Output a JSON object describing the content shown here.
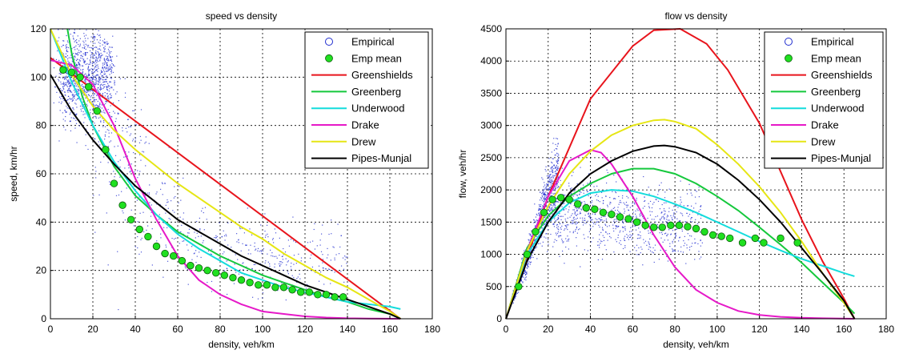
{
  "chart_data": [
    {
      "type": "line",
      "title": "speed vs density",
      "xlabel": "density, veh/km",
      "ylabel": "speed, km/hr",
      "xlim": [
        0,
        180
      ],
      "ylim": [
        0,
        120
      ],
      "xticks": [
        0,
        20,
        40,
        60,
        80,
        100,
        120,
        140,
        160,
        180
      ],
      "yticks": [
        0,
        20,
        40,
        60,
        80,
        100,
        120
      ],
      "grid": true,
      "legend_position": "top-right",
      "legend": [
        "Empirical",
        "Emp mean",
        "Greenshields",
        "Greenberg",
        "Underwood",
        "Drake",
        "Drew",
        "Pipes-Munjal"
      ],
      "empirical_cloud": "dense blue scatter concentrated at density 5-30 and speed 80-115, spreading along the decaying speed curve to density ~140",
      "emp_mean": {
        "x": [
          6,
          10,
          14,
          18,
          22,
          26,
          30,
          34,
          38,
          42,
          46,
          50,
          54,
          58,
          62,
          66,
          70,
          74,
          78,
          82,
          86,
          90,
          94,
          98,
          102,
          106,
          110,
          114,
          118,
          122,
          126,
          130,
          134,
          138
        ],
        "y": [
          103,
          102,
          100,
          96,
          86,
          70,
          56,
          47,
          41,
          37,
          34,
          30,
          27,
          26,
          24,
          22,
          21,
          20,
          19,
          18,
          17,
          16,
          15,
          14,
          14,
          13,
          13,
          12,
          11,
          11,
          10,
          10,
          9,
          9
        ]
      },
      "series": [
        {
          "name": "Greenshields",
          "color": "#e8141c",
          "x": [
            0,
            165
          ],
          "y": [
            108,
            0
          ]
        },
        {
          "name": "Greenberg",
          "color": "#15c83c",
          "x": [
            8,
            10,
            15,
            20,
            30,
            40,
            50,
            60,
            70,
            80,
            90,
            100,
            110,
            120,
            130,
            140,
            150,
            160,
            165
          ],
          "y": [
            120,
            110,
            92,
            80,
            63,
            51,
            43,
            36,
            31,
            26,
            22,
            18,
            15,
            12,
            9,
            7,
            4,
            2,
            0
          ]
        },
        {
          "name": "Underwood",
          "color": "#14dcdc",
          "x": [
            0,
            10,
            20,
            30,
            40,
            50,
            60,
            70,
            80,
            90,
            100,
            110,
            120,
            130,
            140,
            150,
            160,
            165
          ],
          "y": [
            120,
            98,
            80,
            65,
            53,
            43,
            35,
            29,
            24,
            19,
            16,
            13,
            11,
            9,
            7,
            6,
            5,
            4
          ]
        },
        {
          "name": "Drake",
          "color": "#e619c8",
          "x": [
            0,
            10,
            20,
            30,
            40,
            50,
            60,
            70,
            80,
            90,
            100,
            110,
            120,
            130,
            140,
            150,
            165
          ],
          "y": [
            107,
            105,
            97,
            80,
            58,
            41,
            26,
            16,
            10,
            6,
            3,
            2,
            1,
            0.5,
            0.2,
            0.1,
            0
          ]
        },
        {
          "name": "Drew",
          "color": "#e6e614",
          "x": [
            0,
            10,
            20,
            30,
            40,
            50,
            60,
            70,
            80,
            90,
            100,
            110,
            120,
            130,
            140,
            150,
            160,
            165
          ],
          "y": [
            120,
            101,
            88,
            78,
            70,
            63,
            56,
            50,
            44,
            38,
            33,
            27,
            22,
            17,
            13,
            8,
            3,
            0
          ]
        },
        {
          "name": "Pipes-Munjal",
          "color": "#000000",
          "x": [
            0,
            10,
            20,
            30,
            40,
            50,
            60,
            70,
            80,
            90,
            100,
            110,
            120,
            130,
            140,
            150,
            160,
            165
          ],
          "y": [
            101,
            86,
            74,
            64,
            55,
            48,
            41,
            36,
            31,
            26,
            22,
            18,
            14,
            11,
            8,
            5,
            2,
            0
          ]
        }
      ]
    },
    {
      "type": "line",
      "title": "flow vs density",
      "xlabel": "density, veh/km",
      "ylabel": "flow, veh/hr",
      "xlim": [
        0,
        180
      ],
      "ylim": [
        0,
        4500
      ],
      "xticks": [
        0,
        20,
        40,
        60,
        80,
        100,
        120,
        140,
        160,
        180
      ],
      "yticks": [
        0,
        500,
        1000,
        1500,
        2000,
        2500,
        3000,
        3500,
        4000,
        4500
      ],
      "grid": true,
      "legend_position": "top-right",
      "legend": [
        "Empirical",
        "Emp mean",
        "Greenshields",
        "Greenberg",
        "Underwood",
        "Drake",
        "Drew",
        "Pipes-Munjal"
      ],
      "empirical_cloud": "dense blue scatter rising along the free-flow branch to flow ~2500 at density ~20, then a band around flow 1200-1900 for density 25-80",
      "emp_mean": {
        "x": [
          6,
          10,
          14,
          18,
          22,
          26,
          30,
          34,
          38,
          42,
          46,
          50,
          54,
          58,
          62,
          66,
          70,
          74,
          78,
          82,
          86,
          90,
          94,
          98,
          102,
          106,
          112,
          118,
          122,
          130,
          138
        ],
        "y": [
          500,
          1000,
          1350,
          1650,
          1850,
          1880,
          1850,
          1780,
          1720,
          1700,
          1650,
          1620,
          1580,
          1550,
          1500,
          1450,
          1420,
          1420,
          1450,
          1450,
          1430,
          1400,
          1350,
          1300,
          1280,
          1250,
          1180,
          1250,
          1180,
          1250,
          1180
        ]
      },
      "series": [
        {
          "name": "Greenshields",
          "color": "#e8141c",
          "x": [
            0,
            20,
            40,
            60,
            70,
            82.5,
            95,
            105,
            120,
            140,
            150,
            160,
            165
          ],
          "y": [
            0,
            1898,
            3413,
            4231,
            4479,
            4500,
            4266,
            3862,
            3033,
            1539,
            885,
            314,
            0
          ]
        },
        {
          "name": "Greenberg",
          "color": "#15c83c",
          "x": [
            0,
            10,
            20,
            30,
            40,
            50,
            60,
            70,
            80,
            90,
            100,
            110,
            120,
            130,
            140,
            150,
            160,
            165
          ],
          "y": [
            0,
            1100,
            1600,
            1900,
            2100,
            2250,
            2330,
            2330,
            2250,
            2100,
            1900,
            1680,
            1420,
            1150,
            870,
            560,
            250,
            80
          ]
        },
        {
          "name": "Underwood",
          "color": "#14dcdc",
          "x": [
            0,
            10,
            20,
            30,
            40,
            50,
            60,
            70,
            80,
            90,
            100,
            110,
            120,
            130,
            140,
            150,
            160,
            165
          ],
          "y": [
            0,
            1000,
            1500,
            1800,
            1950,
            2000,
            1980,
            1900,
            1780,
            1650,
            1500,
            1350,
            1200,
            1060,
            930,
            820,
            710,
            660
          ]
        },
        {
          "name": "Drake",
          "color": "#e619c8",
          "x": [
            0,
            10,
            20,
            30,
            40,
            45,
            50,
            60,
            70,
            80,
            90,
            100,
            110,
            120,
            130,
            140,
            150,
            165
          ],
          "y": [
            0,
            1050,
            1900,
            2450,
            2620,
            2580,
            2400,
            1900,
            1300,
            800,
            450,
            250,
            120,
            60,
            30,
            15,
            8,
            0
          ]
        },
        {
          "name": "Drew",
          "color": "#e6e614",
          "x": [
            0,
            10,
            20,
            30,
            40,
            50,
            60,
            70,
            75,
            80,
            90,
            100,
            110,
            120,
            130,
            140,
            150,
            160,
            165
          ],
          "y": [
            0,
            1050,
            1750,
            2250,
            2600,
            2850,
            3000,
            3080,
            3090,
            3060,
            2950,
            2700,
            2400,
            2050,
            1650,
            1200,
            700,
            250,
            0
          ]
        },
        {
          "name": "Pipes-Munjal",
          "color": "#000000",
          "x": [
            0,
            10,
            20,
            30,
            40,
            50,
            60,
            70,
            75,
            80,
            90,
            100,
            110,
            120,
            130,
            140,
            150,
            160,
            165
          ],
          "y": [
            0,
            900,
            1500,
            1950,
            2250,
            2450,
            2600,
            2680,
            2690,
            2670,
            2580,
            2400,
            2150,
            1850,
            1500,
            1100,
            700,
            280,
            0
          ]
        }
      ]
    }
  ]
}
